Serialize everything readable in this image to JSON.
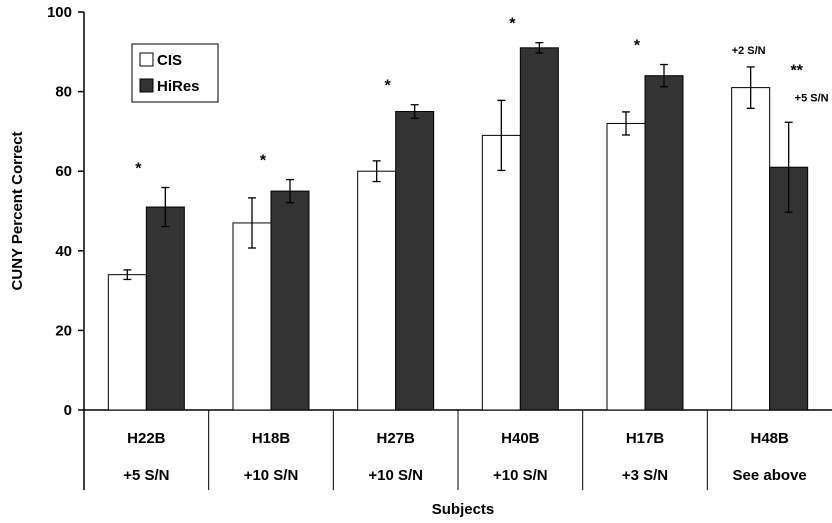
{
  "chart_data": {
    "type": "bar",
    "ylabel": "CUNY Percent Correct",
    "xlabel": "Subjects",
    "ylim": [
      0,
      100
    ],
    "yticks": [
      0,
      20,
      40,
      60,
      80,
      100
    ],
    "categories": [
      "H22B",
      "H18B",
      "H27B",
      "H40B",
      "H17B",
      "H48B"
    ],
    "conditions": [
      "+5 S/N",
      "+10 S/N",
      "+10 S/N",
      "+10 S/N",
      "+3 S/N",
      "See above"
    ],
    "series": [
      {
        "name": "CIS",
        "color": "#ffffff",
        "values": [
          34,
          47,
          60,
          69,
          72,
          81
        ],
        "errors": [
          1.2,
          6.3,
          2.6,
          8.8,
          2.9,
          5.2
        ]
      },
      {
        "name": "HiRes",
        "color": "#333333",
        "values": [
          51,
          55,
          75,
          91,
          84,
          61
        ],
        "errors": [
          4.9,
          2.9,
          1.7,
          1.3,
          2.8,
          11.3
        ]
      }
    ],
    "significance": [
      "*",
      "*",
      "*",
      "*",
      "*",
      "**"
    ],
    "annotations": [
      {
        "text": "+2 S/N",
        "category": "H48B",
        "series": "CIS"
      },
      {
        "text": "+5 S/N",
        "category": "H48B",
        "series": "HiRes"
      }
    ],
    "legend_position": "top-left",
    "grid": false
  }
}
